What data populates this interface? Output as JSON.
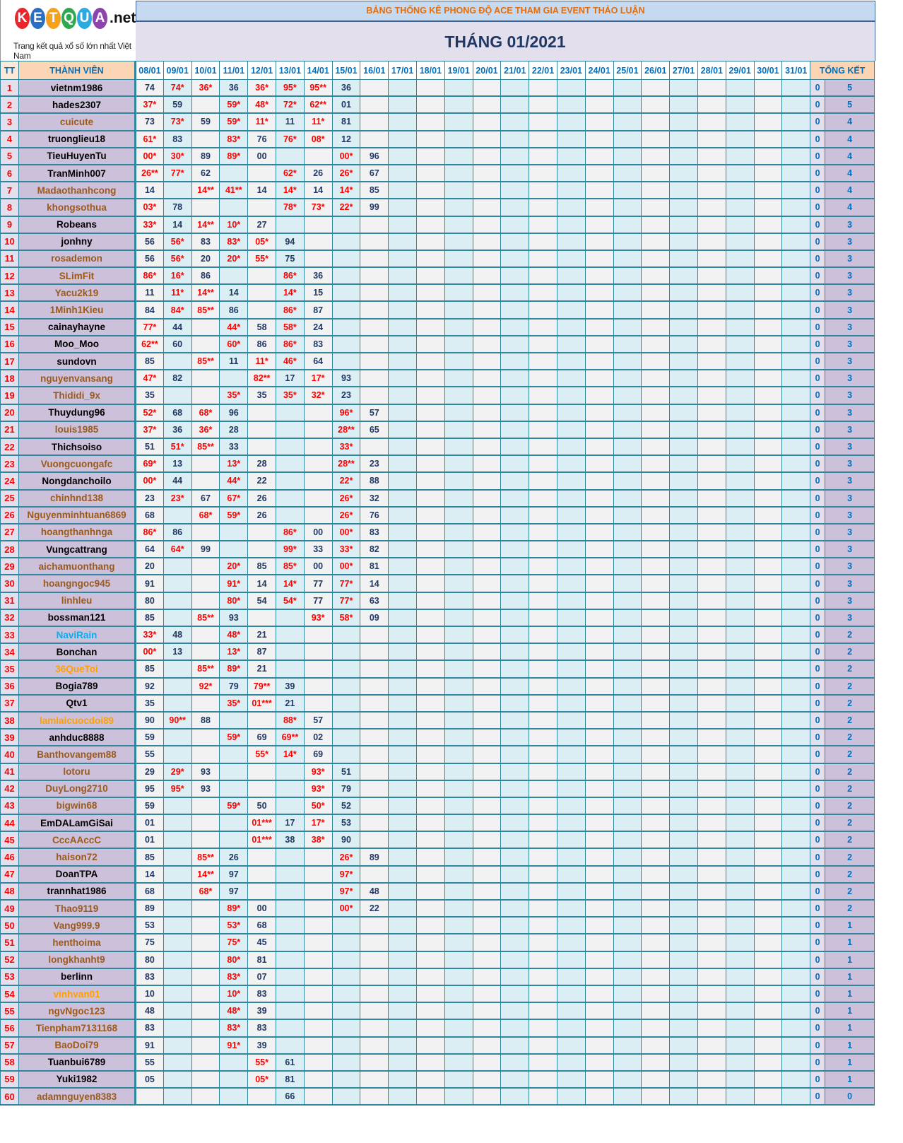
{
  "logo": {
    "letters": [
      "K",
      "E",
      "T",
      "Q",
      "U",
      "A"
    ],
    "colors": [
      "#e8262b",
      "#2a6fc1",
      "#f5a11c",
      "#2fa84f",
      "#29abe2",
      "#8e44ad"
    ],
    "suffix": ".net",
    "tagline": "Trang kết quả xổ số lớn nhất Việt Nam"
  },
  "header": {
    "title": "BẢNG THỐNG KÊ PHONG ĐỘ ACE THAM GIA EVENT THẢO LUẬN",
    "month": "THÁNG 01/2021"
  },
  "colors": {
    "hit": "#ff0000",
    "number": "#1f3864",
    "name_black": "#000000",
    "name_brown": "#9c5a1a",
    "name_blue": "#00b0f0",
    "name_orange": "#ffa000"
  },
  "table": {
    "col_tt": "TT",
    "col_member": "THÀNH VIÊN",
    "col_total": "TỔNG KẾT",
    "dates": [
      "08/01",
      "09/01",
      "10/01",
      "11/01",
      "12/01",
      "13/01",
      "14/01",
      "15/01",
      "16/01",
      "17/01",
      "18/01",
      "19/01",
      "20/01",
      "21/01",
      "22/01",
      "23/01",
      "24/01",
      "25/01",
      "26/01",
      "27/01",
      "28/01",
      "29/01",
      "30/01",
      "31/01"
    ],
    "rows": [
      {
        "tt": "1",
        "name": "vietnm1986",
        "c": "black",
        "cells": [
          "74",
          "74*",
          "36*",
          "36",
          "36*",
          "95*",
          "95**",
          "36",
          ""
        ],
        "zero": "0",
        "total": "5"
      },
      {
        "tt": "2",
        "name": "hades2307",
        "c": "black",
        "cells": [
          "37*",
          "59",
          "",
          "59*",
          "48*",
          "72*",
          "62**",
          "01",
          ""
        ],
        "zero": "0",
        "total": "5"
      },
      {
        "tt": "3",
        "name": "cuicute",
        "c": "brown",
        "cells": [
          "73",
          "73*",
          "59",
          "59*",
          "11*",
          "11",
          "11*",
          "81",
          ""
        ],
        "zero": "0",
        "total": "4"
      },
      {
        "tt": "4",
        "name": "truonglieu18",
        "c": "black",
        "cells": [
          "61*",
          "83",
          "",
          "83*",
          "76",
          "76*",
          "08*",
          "12",
          ""
        ],
        "zero": "0",
        "total": "4"
      },
      {
        "tt": "5",
        "name": "TieuHuyenTu",
        "c": "black",
        "cells": [
          "00*",
          "30*",
          "89",
          "89*",
          "00",
          "",
          "",
          "00*",
          "96"
        ],
        "zero": "0",
        "total": "4"
      },
      {
        "tt": "6",
        "name": "TranMinh007",
        "c": "black",
        "cells": [
          "26**",
          "77*",
          "62",
          "",
          "",
          "62*",
          "26",
          "26*",
          "67"
        ],
        "zero": "0",
        "total": "4"
      },
      {
        "tt": "7",
        "name": "Madaothanhcong",
        "c": "brown",
        "cells": [
          "14",
          "",
          "14**",
          "41**",
          "14",
          "14*",
          "14",
          "14*",
          "85"
        ],
        "zero": "0",
        "total": "4"
      },
      {
        "tt": "8",
        "name": "khongsothua",
        "c": "brown",
        "cells": [
          "03*",
          "78",
          "",
          "",
          "",
          "78*",
          "73*",
          "22*",
          "99"
        ],
        "zero": "0",
        "total": "4"
      },
      {
        "tt": "9",
        "name": "Robeans",
        "c": "black",
        "cells": [
          "33*",
          "14",
          "14**",
          "10*",
          "27",
          "",
          "",
          "",
          ""
        ],
        "zero": "0",
        "total": "3"
      },
      {
        "tt": "10",
        "name": "jonhny",
        "c": "black",
        "cells": [
          "56",
          "56*",
          "83",
          "83*",
          "05*",
          "94",
          "",
          "",
          ""
        ],
        "zero": "0",
        "total": "3"
      },
      {
        "tt": "11",
        "name": "rosademon",
        "c": "brown",
        "cells": [
          "56",
          "56*",
          "20",
          "20*",
          "55*",
          "75",
          "",
          "",
          ""
        ],
        "zero": "0",
        "total": "3"
      },
      {
        "tt": "12",
        "name": "SLimFit",
        "c": "brown",
        "cells": [
          "86*",
          "16*",
          "86",
          "",
          "",
          "86*",
          "36",
          "",
          ""
        ],
        "zero": "0",
        "total": "3"
      },
      {
        "tt": "13",
        "name": "Yacu2k19",
        "c": "brown",
        "cells": [
          "11",
          "11*",
          "14**",
          "14",
          "",
          "14*",
          "15",
          "",
          ""
        ],
        "zero": "0",
        "total": "3"
      },
      {
        "tt": "14",
        "name": "1Minh1Kieu",
        "c": "brown",
        "cells": [
          "84",
          "84*",
          "85**",
          "86",
          "",
          "86*",
          "87",
          "",
          ""
        ],
        "zero": "0",
        "total": "3"
      },
      {
        "tt": "15",
        "name": "cainayhayne",
        "c": "black",
        "cells": [
          "77*",
          "44",
          "",
          "44*",
          "58",
          "58*",
          "24",
          "",
          ""
        ],
        "zero": "0",
        "total": "3"
      },
      {
        "tt": "16",
        "name": "Moo_Moo",
        "c": "black",
        "cells": [
          "62**",
          "60",
          "",
          "60*",
          "86",
          "86*",
          "83",
          "",
          ""
        ],
        "zero": "0",
        "total": "3"
      },
      {
        "tt": "17",
        "name": "sundovn",
        "c": "black",
        "cells": [
          "85",
          "",
          "85**",
          "11",
          "11*",
          "46*",
          "64",
          "",
          ""
        ],
        "zero": "0",
        "total": "3"
      },
      {
        "tt": "18",
        "name": "nguyenvansang",
        "c": "brown",
        "cells": [
          "47*",
          "82",
          "",
          "",
          "82**",
          "17",
          "17*",
          "93",
          ""
        ],
        "zero": "0",
        "total": "3"
      },
      {
        "tt": "19",
        "name": "Thididi_9x",
        "c": "brown",
        "cells": [
          "35",
          "",
          "",
          "35*",
          "35",
          "35*",
          "32*",
          "23",
          ""
        ],
        "zero": "0",
        "total": "3"
      },
      {
        "tt": "20",
        "name": "Thuydung96",
        "c": "black",
        "cells": [
          "52*",
          "68",
          "68*",
          "96",
          "",
          "",
          "",
          "96*",
          "57"
        ],
        "zero": "0",
        "total": "3"
      },
      {
        "tt": "21",
        "name": "louis1985",
        "c": "brown",
        "cells": [
          "37*",
          "36",
          "36*",
          "28",
          "",
          "",
          "",
          "28**",
          "65"
        ],
        "zero": "0",
        "total": "3"
      },
      {
        "tt": "22",
        "name": "Thichsoiso",
        "c": "black",
        "cells": [
          "51",
          "51*",
          "85**",
          "33",
          "",
          "",
          "",
          "33*",
          ""
        ],
        "zero": "0",
        "total": "3"
      },
      {
        "tt": "23",
        "name": "Vuongcuongafc",
        "c": "brown",
        "cells": [
          "69*",
          "13",
          "",
          "13*",
          "28",
          "",
          "",
          "28**",
          "23"
        ],
        "zero": "0",
        "total": "3"
      },
      {
        "tt": "24",
        "name": "Nongdanchoilo",
        "c": "black",
        "cells": [
          "00*",
          "44",
          "",
          "44*",
          "22",
          "",
          "",
          "22*",
          "88"
        ],
        "zero": "0",
        "total": "3"
      },
      {
        "tt": "25",
        "name": "chinhnd138",
        "c": "brown",
        "cells": [
          "23",
          "23*",
          "67",
          "67*",
          "26",
          "",
          "",
          "26*",
          "32"
        ],
        "zero": "0",
        "total": "3"
      },
      {
        "tt": "26",
        "name": "Nguyenminhtuan6869",
        "c": "brown",
        "cells": [
          "68",
          "",
          "68*",
          "59*",
          "26",
          "",
          "",
          "26*",
          "76"
        ],
        "zero": "0",
        "total": "3"
      },
      {
        "tt": "27",
        "name": "hoangthanhnga",
        "c": "brown",
        "cells": [
          "86*",
          "86",
          "",
          "",
          "",
          "86*",
          "00",
          "00*",
          "83"
        ],
        "zero": "0",
        "total": "3"
      },
      {
        "tt": "28",
        "name": "Vungcattrang",
        "c": "black",
        "cells": [
          "64",
          "64*",
          "99",
          "",
          "",
          "99*",
          "33",
          "33*",
          "82"
        ],
        "zero": "0",
        "total": "3"
      },
      {
        "tt": "29",
        "name": "aichamuonthang",
        "c": "brown",
        "cells": [
          "20",
          "",
          "",
          "20*",
          "85",
          "85*",
          "00",
          "00*",
          "81"
        ],
        "zero": "0",
        "total": "3"
      },
      {
        "tt": "30",
        "name": "hoangngoc945",
        "c": "brown",
        "cells": [
          "91",
          "",
          "",
          "91*",
          "14",
          "14*",
          "77",
          "77*",
          "14"
        ],
        "zero": "0",
        "total": "3"
      },
      {
        "tt": "31",
        "name": "linhleu",
        "c": "brown",
        "cells": [
          "80",
          "",
          "",
          "80*",
          "54",
          "54*",
          "77",
          "77*",
          "63"
        ],
        "zero": "0",
        "total": "3"
      },
      {
        "tt": "32",
        "name": "bossman121",
        "c": "black",
        "cells": [
          "85",
          "",
          "85**",
          "93",
          "",
          "",
          "93*",
          "58*",
          "09"
        ],
        "zero": "0",
        "total": "3"
      },
      {
        "tt": "33",
        "name": "NaviRain",
        "c": "blue",
        "cells": [
          "33*",
          "48",
          "",
          "48*",
          "21",
          "",
          "",
          "",
          ""
        ],
        "zero": "0",
        "total": "2"
      },
      {
        "tt": "34",
        "name": "Bonchan",
        "c": "black",
        "cells": [
          "00*",
          "13",
          "",
          "13*",
          "87",
          "",
          "",
          "",
          ""
        ],
        "zero": "0",
        "total": "2"
      },
      {
        "tt": "35",
        "name": "36QueToi",
        "c": "orange",
        "cells": [
          "85",
          "",
          "85**",
          "89*",
          "21",
          "",
          "",
          "",
          ""
        ],
        "zero": "0",
        "total": "2"
      },
      {
        "tt": "36",
        "name": "Bogia789",
        "c": "black",
        "cells": [
          "92",
          "",
          "92*",
          "79",
          "79**",
          "39",
          "",
          "",
          ""
        ],
        "zero": "0",
        "total": "2"
      },
      {
        "tt": "37",
        "name": "Qtv1",
        "c": "black",
        "cells": [
          "35",
          "",
          "",
          "35*",
          "01***",
          "21",
          "",
          "",
          ""
        ],
        "zero": "0",
        "total": "2"
      },
      {
        "tt": "38",
        "name": "lamlaicuocdoi89",
        "c": "orange",
        "cells": [
          "90",
          "90**",
          "88",
          "",
          "",
          "88*",
          "57",
          "",
          ""
        ],
        "zero": "0",
        "total": "2"
      },
      {
        "tt": "39",
        "name": "anhduc8888",
        "c": "black",
        "cells": [
          "59",
          "",
          "",
          "59*",
          "69",
          "69**",
          "02",
          "",
          ""
        ],
        "zero": "0",
        "total": "2"
      },
      {
        "tt": "40",
        "name": "Banthovangem88",
        "c": "brown",
        "cells": [
          "55",
          "",
          "",
          "",
          "55*",
          "14*",
          "69",
          "",
          ""
        ],
        "zero": "0",
        "total": "2"
      },
      {
        "tt": "41",
        "name": "lotoru",
        "c": "brown",
        "cells": [
          "29",
          "29*",
          "93",
          "",
          "",
          "",
          "93*",
          "51",
          ""
        ],
        "zero": "0",
        "total": "2"
      },
      {
        "tt": "42",
        "name": "DuyLong2710",
        "c": "brown",
        "cells": [
          "95",
          "95*",
          "93",
          "",
          "",
          "",
          "93*",
          "79",
          ""
        ],
        "zero": "0",
        "total": "2"
      },
      {
        "tt": "43",
        "name": "bigwin68",
        "c": "brown",
        "cells": [
          "59",
          "",
          "",
          "59*",
          "50",
          "",
          "50*",
          "52",
          ""
        ],
        "zero": "0",
        "total": "2"
      },
      {
        "tt": "44",
        "name": "EmDALamGiSai",
        "c": "black",
        "cells": [
          "01",
          "",
          "",
          "",
          "01***",
          "17",
          "17*",
          "53",
          ""
        ],
        "zero": "0",
        "total": "2"
      },
      {
        "tt": "45",
        "name": "CccAAccC",
        "c": "brown",
        "cells": [
          "01",
          "",
          "",
          "",
          "01***",
          "38",
          "38*",
          "90",
          ""
        ],
        "zero": "0",
        "total": "2"
      },
      {
        "tt": "46",
        "name": "haison72",
        "c": "brown",
        "cells": [
          "85",
          "",
          "85**",
          "26",
          "",
          "",
          "",
          "26*",
          "89"
        ],
        "zero": "0",
        "total": "2"
      },
      {
        "tt": "47",
        "name": "DoanTPA",
        "c": "black",
        "cells": [
          "14",
          "",
          "14**",
          "97",
          "",
          "",
          "",
          "97*",
          ""
        ],
        "zero": "0",
        "total": "2"
      },
      {
        "tt": "48",
        "name": "trannhat1986",
        "c": "black",
        "cells": [
          "68",
          "",
          "68*",
          "97",
          "",
          "",
          "",
          "97*",
          "48"
        ],
        "zero": "0",
        "total": "2"
      },
      {
        "tt": "49",
        "name": "Thao9119",
        "c": "brown",
        "cells": [
          "89",
          "",
          "",
          "89*",
          "00",
          "",
          "",
          "00*",
          "22"
        ],
        "zero": "0",
        "total": "2"
      },
      {
        "tt": "50",
        "name": "Vang999.9",
        "c": "brown",
        "cells": [
          "53",
          "",
          "",
          "53*",
          "68",
          "",
          "",
          "",
          ""
        ],
        "zero": "0",
        "total": "1"
      },
      {
        "tt": "51",
        "name": "henthoima",
        "c": "brown",
        "cells": [
          "75",
          "",
          "",
          "75*",
          "45",
          "",
          "",
          "",
          ""
        ],
        "zero": "0",
        "total": "1"
      },
      {
        "tt": "52",
        "name": "longkhanht9",
        "c": "brown",
        "cells": [
          "80",
          "",
          "",
          "80*",
          "81",
          "",
          "",
          "",
          ""
        ],
        "zero": "0",
        "total": "1"
      },
      {
        "tt": "53",
        "name": "berlinn",
        "c": "black",
        "cells": [
          "83",
          "",
          "",
          "83*",
          "07",
          "",
          "",
          "",
          ""
        ],
        "zero": "0",
        "total": "1"
      },
      {
        "tt": "54",
        "name": "vinhvan01",
        "c": "orange",
        "cells": [
          "10",
          "",
          "",
          "10*",
          "83",
          "",
          "",
          "",
          ""
        ],
        "zero": "0",
        "total": "1"
      },
      {
        "tt": "55",
        "name": "ngvNgoc123",
        "c": "brown",
        "cells": [
          "48",
          "",
          "",
          "48*",
          "39",
          "",
          "",
          "",
          ""
        ],
        "zero": "0",
        "total": "1"
      },
      {
        "tt": "56",
        "name": "Tienpham7131168",
        "c": "brown",
        "cells": [
          "83",
          "",
          "",
          "83*",
          "83",
          "",
          "",
          "",
          ""
        ],
        "zero": "0",
        "total": "1"
      },
      {
        "tt": "57",
        "name": "BaoDoi79",
        "c": "brown",
        "cells": [
          "91",
          "",
          "",
          "91*",
          "39",
          "",
          "",
          "",
          ""
        ],
        "zero": "0",
        "total": "1"
      },
      {
        "tt": "58",
        "name": "Tuanbui6789",
        "c": "black",
        "cells": [
          "55",
          "",
          "",
          "",
          "55*",
          "61",
          "",
          "",
          ""
        ],
        "zero": "0",
        "total": "1"
      },
      {
        "tt": "59",
        "name": "Yuki1982",
        "c": "black",
        "cells": [
          "05",
          "",
          "",
          "",
          "05*",
          "81",
          "",
          "",
          ""
        ],
        "zero": "0",
        "total": "1"
      },
      {
        "tt": "60",
        "name": "adamnguyen8383",
        "c": "brown",
        "cells": [
          "",
          "",
          "",
          "",
          "",
          "66",
          "",
          "",
          ""
        ],
        "zero": "0",
        "total": "0"
      }
    ]
  }
}
